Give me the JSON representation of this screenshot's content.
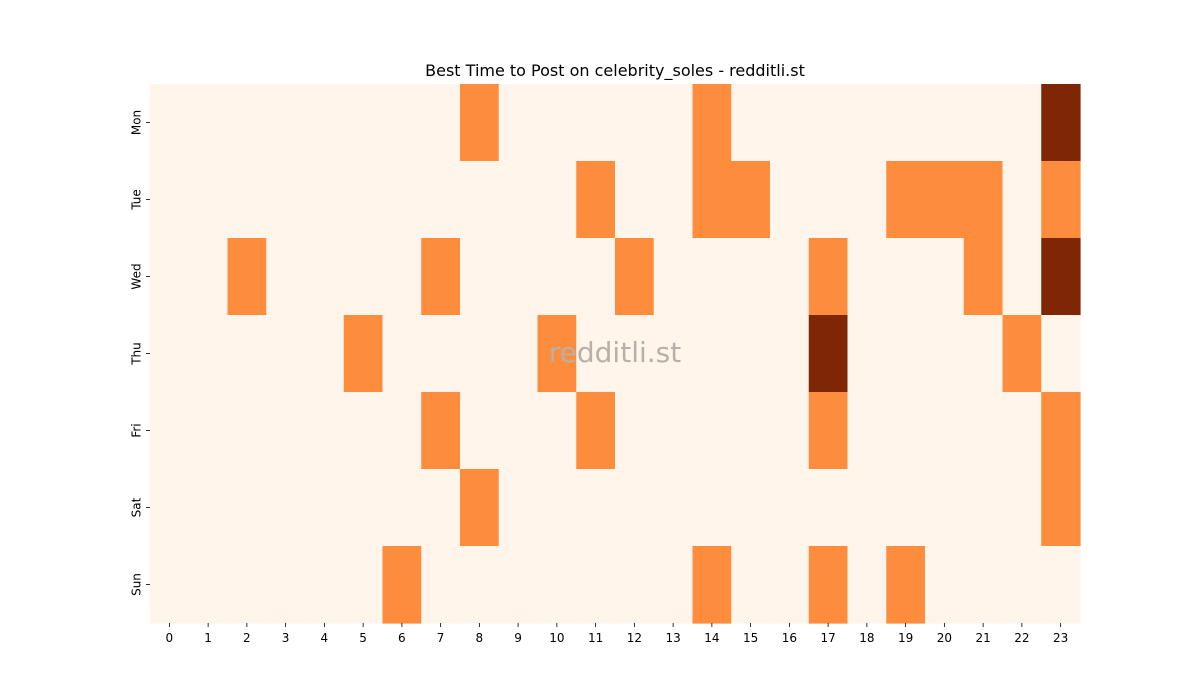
{
  "chart_data": {
    "type": "heatmap",
    "title": "Best Time to Post on celebrity_soles - redditli.st",
    "watermark": "redditli.st",
    "x_labels": [
      "0",
      "1",
      "2",
      "3",
      "4",
      "5",
      "6",
      "7",
      "8",
      "9",
      "10",
      "11",
      "12",
      "13",
      "14",
      "15",
      "16",
      "17",
      "18",
      "19",
      "20",
      "21",
      "22",
      "23"
    ],
    "y_labels": [
      "Mon",
      "Tue",
      "Wed",
      "Thu",
      "Fri",
      "Sat",
      "Sun"
    ],
    "xlabel": "",
    "ylabel": "",
    "value_range": [
      0,
      2
    ],
    "colormap": {
      "low": "#fff5eb",
      "mid": "#fd8d3c",
      "high": "#7f2704"
    },
    "grid": false,
    "colorbar": false,
    "values": [
      [
        0,
        0,
        0,
        0,
        0,
        0,
        0,
        0,
        1,
        0,
        0,
        0,
        0,
        0,
        1,
        0,
        0,
        0,
        0,
        0,
        0,
        0,
        0,
        2
      ],
      [
        0,
        0,
        0,
        0,
        0,
        0,
        0,
        0,
        0,
        0,
        0,
        1,
        0,
        0,
        1,
        1,
        0,
        0,
        0,
        1,
        1,
        1,
        0,
        1
      ],
      [
        0,
        0,
        1,
        0,
        0,
        0,
        0,
        1,
        0,
        0,
        0,
        0,
        1,
        0,
        0,
        0,
        0,
        1,
        0,
        0,
        0,
        1,
        0,
        2
      ],
      [
        0,
        0,
        0,
        0,
        0,
        1,
        0,
        0,
        0,
        0,
        1,
        0,
        0,
        0,
        0,
        0,
        0,
        2,
        0,
        0,
        0,
        0,
        1,
        0
      ],
      [
        0,
        0,
        0,
        0,
        0,
        0,
        0,
        1,
        0,
        0,
        0,
        1,
        0,
        0,
        0,
        0,
        0,
        1,
        0,
        0,
        0,
        0,
        0,
        1
      ],
      [
        0,
        0,
        0,
        0,
        0,
        0,
        0,
        0,
        1,
        0,
        0,
        0,
        0,
        0,
        0,
        0,
        0,
        0,
        0,
        0,
        0,
        0,
        0,
        1
      ],
      [
        0,
        0,
        0,
        0,
        0,
        0,
        1,
        0,
        0,
        0,
        0,
        0,
        0,
        0,
        1,
        0,
        0,
        1,
        0,
        1,
        0,
        0,
        0,
        0
      ]
    ]
  }
}
